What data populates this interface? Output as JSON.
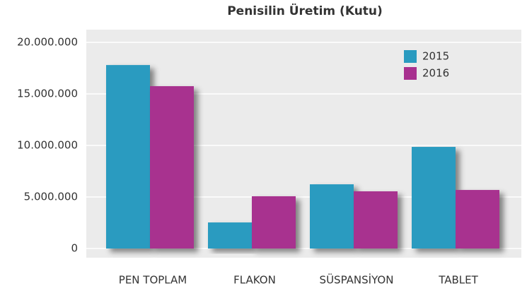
{
  "chart_data": {
    "type": "bar",
    "title": "Penisilin Üretim (Kutu)",
    "categories": [
      "PEN TOPLAM",
      "FLAKON",
      "SÜSPANSİYON",
      "TABLET"
    ],
    "series": [
      {
        "name": "2015",
        "color": "#2a9bc0",
        "values": [
          17800000,
          2530000,
          6230000,
          9860000
        ]
      },
      {
        "name": "2016",
        "color": "#a8308f",
        "values": [
          15750000,
          5070000,
          5550000,
          5680000
        ]
      }
    ],
    "ylim": [
      0,
      20000000
    ],
    "yticks": [
      0,
      {
        "value": 5000000,
        "label": "5.000.000"
      },
      {
        "value": 10000000,
        "label": "10.000.000"
      },
      {
        "value": 15000000,
        "label": "15.000.000"
      },
      {
        "value": 20000000,
        "label": "20.000.000"
      }
    ],
    "grid": true,
    "legend": "top-right"
  }
}
